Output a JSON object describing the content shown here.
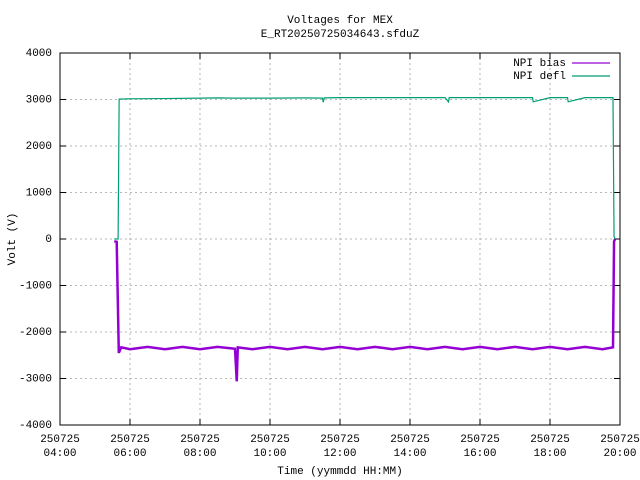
{
  "chart_data": {
    "type": "line",
    "title": "Voltages for MEX",
    "subtitle": "E_RT20250725034643.sfduZ",
    "xlabel": "Time (yymmdd HH:MM)",
    "ylabel": "Volt (V)",
    "xlim": [
      4,
      20
    ],
    "xticks": [
      {
        "value": 4,
        "label": [
          "250725",
          "04:00"
        ]
      },
      {
        "value": 6,
        "label": [
          "250725",
          "06:00"
        ]
      },
      {
        "value": 8,
        "label": [
          "250725",
          "08:00"
        ]
      },
      {
        "value": 10,
        "label": [
          "250725",
          "10:00"
        ]
      },
      {
        "value": 12,
        "label": [
          "250725",
          "12:00"
        ]
      },
      {
        "value": 14,
        "label": [
          "250725",
          "14:00"
        ]
      },
      {
        "value": 16,
        "label": [
          "250725",
          "16:00"
        ]
      },
      {
        "value": 18,
        "label": [
          "250725",
          "18:00"
        ]
      },
      {
        "value": 20,
        "label": [
          "250725",
          "20:00"
        ]
      }
    ],
    "ylim": [
      -4000,
      4000
    ],
    "yticks": [
      -4000,
      -3000,
      -2000,
      -1000,
      0,
      1000,
      2000,
      3000,
      4000
    ],
    "grid": true,
    "legend": "top-right",
    "series": [
      {
        "name": "NPI bias",
        "color": "#9400d3",
        "x": [
          5.55,
          5.62,
          5.68,
          5.75,
          6,
          6.5,
          7,
          7.5,
          8,
          8.5,
          9,
          9.05,
          9.08,
          9.5,
          10,
          10.5,
          11,
          11.5,
          12,
          12.5,
          13,
          13.5,
          14,
          14.5,
          15,
          15.5,
          16,
          16.5,
          17,
          17.5,
          18,
          18.5,
          19,
          19.5,
          19.8,
          19.83,
          19.86
        ],
        "values": [
          -50,
          -60,
          -2450,
          -2330,
          -2370,
          -2320,
          -2370,
          -2320,
          -2370,
          -2320,
          -2360,
          -3060,
          -2330,
          -2370,
          -2320,
          -2370,
          -2320,
          -2370,
          -2320,
          -2370,
          -2320,
          -2370,
          -2320,
          -2370,
          -2320,
          -2370,
          -2320,
          -2370,
          -2320,
          -2370,
          -2320,
          -2370,
          -2320,
          -2370,
          -2330,
          -50,
          0
        ]
      },
      {
        "name": "NPI defl",
        "color": "#009e73",
        "x": [
          5.55,
          5.66,
          5.69,
          6,
          7,
          8,
          8.5,
          9,
          10,
          11,
          11.5,
          11.52,
          11.55,
          12,
          13,
          14,
          15,
          15.1,
          15.12,
          16,
          17,
          17.5,
          17.52,
          18,
          18.5,
          18.52,
          19,
          19.8,
          19.83,
          19.86
        ],
        "values": [
          0,
          0,
          3010,
          3015,
          3020,
          3030,
          3035,
          3030,
          3030,
          3035,
          3030,
          2940,
          3035,
          3040,
          3040,
          3040,
          3040,
          2950,
          3040,
          3040,
          3040,
          3040,
          2950,
          3040,
          3040,
          2950,
          3040,
          3040,
          50,
          0
        ]
      }
    ]
  }
}
